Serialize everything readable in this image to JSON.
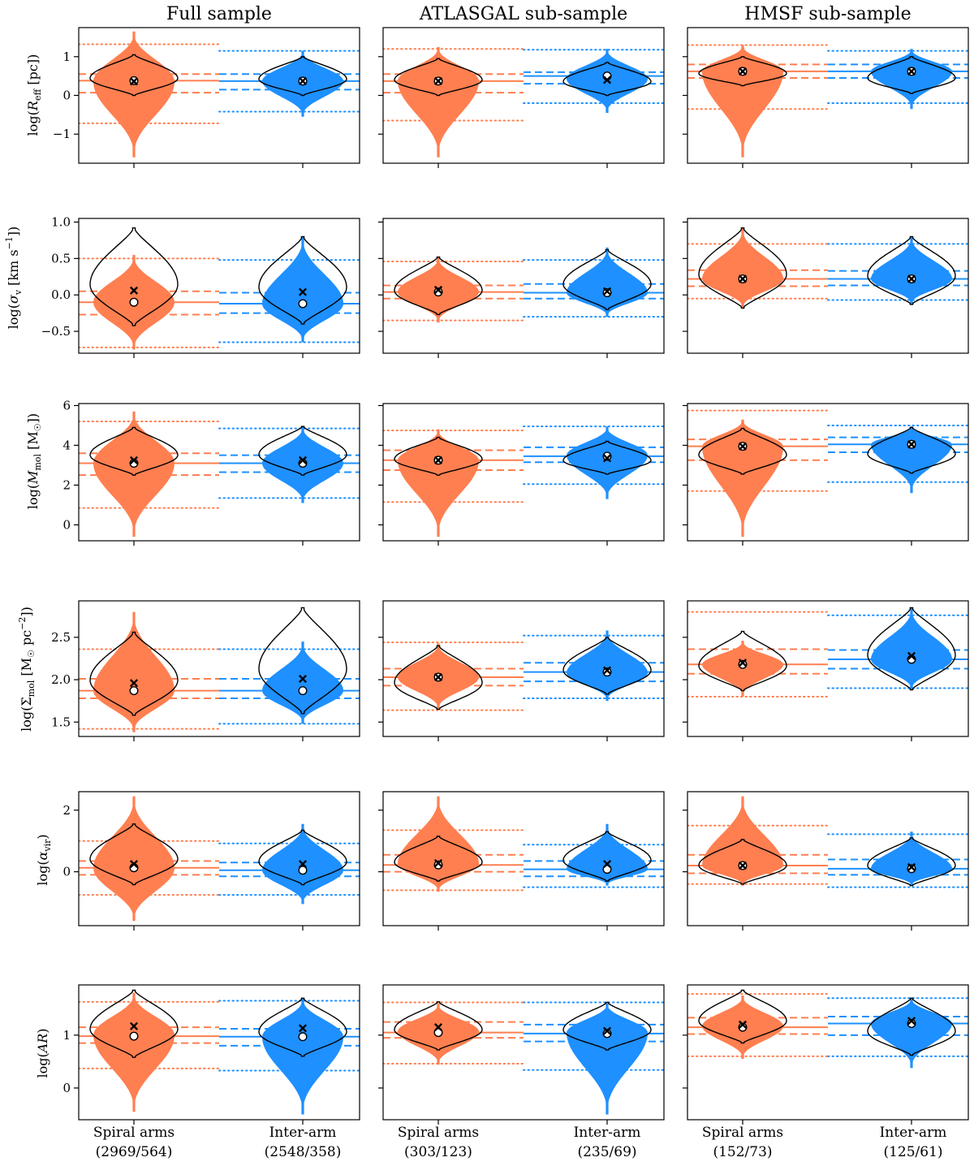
{
  "colors": {
    "spiral": "#ff7f50",
    "interarm": "#1e90ff"
  },
  "column_titles": [
    "Full sample",
    "ATLASGAL sub-sample",
    "HMSF sub-sample"
  ],
  "xlabels": {
    "full": {
      "spiral_name": "Spiral arms",
      "spiral_counts": "(2969/564)",
      "inter_name": "Inter-arm",
      "inter_counts": "(2548/358)"
    },
    "atlasgal": {
      "spiral_name": "Spiral arms",
      "spiral_counts": "(303/123)",
      "inter_name": "Inter-arm",
      "inter_counts": "(235/69)"
    },
    "hmsf": {
      "spiral_name": "Spiral arms",
      "spiral_counts": "(152/73)",
      "inter_name": "Inter-arm",
      "inter_counts": "(125/61)"
    }
  },
  "chart_data": [
    {
      "type": "violin",
      "quantity": "R_eff",
      "ylabel": "log(R_eff [pc])",
      "ylim": [
        -1.75,
        1.75
      ],
      "yticks": [
        1,
        0,
        -1
      ],
      "panels": [
        {
          "column": "Full sample",
          "spiral": {
            "all": {
              "min": -1.6,
              "max": 1.65,
              "median": 0.35
            },
            "weighted": {
              "min": 0.0,
              "max": 1.05
            },
            "mean": 0.38,
            "w_mean": 0.36,
            "p25": 0.07,
            "p75": 0.55,
            "p5": -0.72,
            "p95": 1.32
          },
          "inter": {
            "all": {
              "min": -0.55,
              "max": 1.15,
              "median": 0.37
            },
            "weighted": {
              "min": 0.0,
              "max": 1.0
            },
            "mean": 0.37,
            "w_mean": 0.37,
            "p25": 0.15,
            "p75": 0.55,
            "p5": -0.42,
            "p95": 1.15
          }
        },
        {
          "column": "ATLASGAL sub-sample",
          "spiral": {
            "all": {
              "min": -1.6,
              "max": 1.25,
              "median": 0.38
            },
            "weighted": {
              "min": 0.0,
              "max": 0.95
            },
            "mean": 0.37,
            "w_mean": 0.37,
            "p25": 0.07,
            "p75": 0.55,
            "p5": -0.65,
            "p95": 1.2
          },
          "inter": {
            "all": {
              "min": -0.45,
              "max": 1.2,
              "median": 0.43
            },
            "weighted": {
              "min": 0.0,
              "max": 0.85
            },
            "mean": 0.5,
            "w_mean": 0.4,
            "p25": 0.3,
            "p75": 0.6,
            "p5": -0.2,
            "p95": 1.18
          }
        },
        {
          "column": "HMSF sub-sample",
          "spiral": {
            "all": {
              "min": -1.6,
              "max": 1.3,
              "median": 0.62
            },
            "weighted": {
              "min": 0.25,
              "max": 1.0
            },
            "mean": 0.62,
            "w_mean": 0.62,
            "p25": 0.45,
            "p75": 0.8,
            "p5": -0.35,
            "p95": 1.3
          },
          "inter": {
            "all": {
              "min": -0.35,
              "max": 1.2,
              "median": 0.62
            },
            "weighted": {
              "min": 0.05,
              "max": 1.0
            },
            "mean": 0.62,
            "w_mean": 0.62,
            "p25": 0.45,
            "p75": 0.8,
            "p5": -0.2,
            "p95": 1.15
          }
        }
      ]
    },
    {
      "type": "violin",
      "quantity": "sigma_v",
      "ylabel": "log(σ_v [km s⁻¹])",
      "ylim": [
        -0.8,
        1.05
      ],
      "yticks": [
        1.0,
        0.5,
        0.0,
        -0.5
      ],
      "panels": [
        {
          "column": "Full sample",
          "spiral": {
            "all": {
              "min": -0.75,
              "max": 0.55,
              "median": -0.1
            },
            "weighted": {
              "min": -0.42,
              "max": 0.92
            },
            "mean": -0.1,
            "w_mean": 0.06,
            "p25": -0.27,
            "p75": 0.05,
            "p5": -0.72,
            "p95": 0.5
          },
          "inter": {
            "all": {
              "min": -0.65,
              "max": 0.8,
              "median": -0.12
            },
            "weighted": {
              "min": -0.4,
              "max": 0.8
            },
            "mean": -0.12,
            "w_mean": 0.04,
            "p25": -0.25,
            "p75": 0.03,
            "p5": -0.65,
            "p95": 0.48
          }
        },
        {
          "column": "ATLASGAL sub-sample",
          "spiral": {
            "all": {
              "min": -0.38,
              "max": 0.52,
              "median": 0.04
            },
            "weighted": {
              "min": -0.27,
              "max": 0.52
            },
            "mean": 0.04,
            "w_mean": 0.07,
            "p25": -0.05,
            "p75": 0.13,
            "p5": -0.35,
            "p95": 0.46
          },
          "inter": {
            "all": {
              "min": -0.3,
              "max": 0.65,
              "median": 0.03
            },
            "weighted": {
              "min": -0.2,
              "max": 0.62
            },
            "mean": 0.03,
            "w_mean": 0.05,
            "p25": -0.05,
            "p75": 0.15,
            "p5": -0.3,
            "p95": 0.48
          }
        },
        {
          "column": "HMSF sub-sample",
          "spiral": {
            "all": {
              "min": -0.18,
              "max": 0.92,
              "median": 0.22
            },
            "weighted": {
              "min": -0.18,
              "max": 0.92
            },
            "mean": 0.22,
            "w_mean": 0.22,
            "p25": 0.12,
            "p75": 0.34,
            "p5": -0.05,
            "p95": 0.7
          },
          "inter": {
            "all": {
              "min": -0.13,
              "max": 0.8,
              "median": 0.22
            },
            "weighted": {
              "min": -0.13,
              "max": 0.8
            },
            "mean": 0.22,
            "w_mean": 0.22,
            "p25": 0.13,
            "p75": 0.33,
            "p5": -0.07,
            "p95": 0.7
          }
        }
      ]
    },
    {
      "type": "violin",
      "quantity": "M_mol",
      "ylabel": "log(M_mol [M☉])",
      "ylim": [
        -0.8,
        6.1
      ],
      "yticks": [
        6,
        4,
        2,
        0
      ],
      "panels": [
        {
          "column": "Full sample",
          "spiral": {
            "all": {
              "min": -0.6,
              "max": 5.7,
              "median": 3.1
            },
            "weighted": {
              "min": 2.5,
              "max": 4.9
            },
            "mean": 3.1,
            "w_mean": 3.25,
            "p25": 2.5,
            "p75": 3.6,
            "p5": 0.85,
            "p95": 5.2
          },
          "inter": {
            "all": {
              "min": 1.1,
              "max": 4.95,
              "median": 3.1
            },
            "weighted": {
              "min": 2.5,
              "max": 4.95
            },
            "mean": 3.1,
            "w_mean": 3.25,
            "p25": 2.65,
            "p75": 3.5,
            "p5": 1.35,
            "p95": 4.85
          }
        },
        {
          "column": "ATLASGAL sub-sample",
          "spiral": {
            "all": {
              "min": -0.6,
              "max": 4.8,
              "median": 3.25
            },
            "weighted": {
              "min": 2.5,
              "max": 4.4
            },
            "mean": 3.25,
            "w_mean": 3.25,
            "p25": 2.75,
            "p75": 3.75,
            "p5": 1.15,
            "p95": 4.75
          },
          "inter": {
            "all": {
              "min": 1.3,
              "max": 4.95,
              "median": 3.5
            },
            "weighted": {
              "min": 2.55,
              "max": 4.2
            },
            "mean": 3.45,
            "w_mean": 3.35,
            "p25": 3.15,
            "p75": 3.9,
            "p5": 2.05,
            "p95": 4.95
          }
        },
        {
          "column": "HMSF sub-sample",
          "spiral": {
            "all": {
              "min": -0.6,
              "max": 5.3,
              "median": 3.95
            },
            "weighted": {
              "min": 2.55,
              "max": 4.85
            },
            "mean": 3.95,
            "w_mean": 3.95,
            "p25": 3.25,
            "p75": 4.3,
            "p5": 1.7,
            "p95": 5.75
          },
          "inter": {
            "all": {
              "min": 1.6,
              "max": 4.95,
              "median": 4.05
            },
            "weighted": {
              "min": 2.6,
              "max": 4.9
            },
            "mean": 4.05,
            "w_mean": 4.05,
            "p25": 3.65,
            "p75": 4.4,
            "p5": 2.15,
            "p95": 5.0
          }
        }
      ]
    },
    {
      "type": "violin",
      "quantity": "Sigma_mol",
      "ylabel": "log(Σ_mol [M☉ pc⁻²])",
      "ylim": [
        1.33,
        2.93
      ],
      "yticks": [
        2.5,
        2.0,
        1.5
      ],
      "panels": [
        {
          "column": "Full sample",
          "spiral": {
            "all": {
              "min": 1.38,
              "max": 2.8,
              "median": 1.87
            },
            "weighted": {
              "min": 1.58,
              "max": 2.56
            },
            "mean": 1.87,
            "w_mean": 1.96,
            "p25": 1.78,
            "p75": 2.01,
            "p5": 1.42,
            "p95": 2.36
          },
          "inter": {
            "all": {
              "min": 1.48,
              "max": 2.45,
              "median": 1.87
            },
            "weighted": {
              "min": 1.6,
              "max": 2.85
            },
            "mean": 1.87,
            "w_mean": 2.01,
            "p25": 1.78,
            "p75": 2.01,
            "p5": 1.48,
            "p95": 2.36
          }
        },
        {
          "column": "ATLASGAL sub-sample",
          "spiral": {
            "all": {
              "min": 1.65,
              "max": 2.43,
              "median": 2.03
            },
            "weighted": {
              "min": 1.65,
              "max": 2.4
            },
            "mean": 2.03,
            "w_mean": 2.03,
            "p25": 1.93,
            "p75": 2.13,
            "p5": 1.64,
            "p95": 2.44
          },
          "inter": {
            "all": {
              "min": 1.75,
              "max": 2.58,
              "median": 2.08
            },
            "weighted": {
              "min": 1.83,
              "max": 2.5
            },
            "mean": 2.09,
            "w_mean": 2.11,
            "p25": 1.98,
            "p75": 2.2,
            "p5": 1.78,
            "p95": 2.52
          }
        },
        {
          "column": "HMSF sub-sample",
          "spiral": {
            "all": {
              "min": 1.8,
              "max": 2.46,
              "median": 2.18
            },
            "weighted": {
              "min": 1.87,
              "max": 2.57
            },
            "mean": 2.18,
            "w_mean": 2.2,
            "p25": 2.07,
            "p75": 2.36,
            "p5": 1.8,
            "p95": 2.8
          },
          "inter": {
            "all": {
              "min": 1.88,
              "max": 2.85,
              "median": 2.24
            },
            "weighted": {
              "min": 1.88,
              "max": 2.85
            },
            "mean": 2.24,
            "w_mean": 2.28,
            "p25": 2.13,
            "p75": 2.35,
            "p5": 1.9,
            "p95": 2.76
          }
        }
      ]
    },
    {
      "type": "violin",
      "quantity": "alpha_vir",
      "ylabel": "log(α_vir)",
      "ylim": [
        -1.75,
        2.6
      ],
      "yticks": [
        2,
        0
      ],
      "panels": [
        {
          "column": "Full sample",
          "spiral": {
            "all": {
              "min": -1.6,
              "max": 2.45,
              "median": 0.12
            },
            "weighted": {
              "min": -0.42,
              "max": 1.55
            },
            "mean": 0.13,
            "w_mean": 0.25,
            "p25": -0.1,
            "p75": 0.35,
            "p5": -0.75,
            "p95": 1.0
          },
          "inter": {
            "all": {
              "min": -1.05,
              "max": 1.55,
              "median": 0.05
            },
            "weighted": {
              "min": -0.42,
              "max": 1.35
            },
            "mean": 0.05,
            "w_mean": 0.25,
            "p25": -0.15,
            "p75": 0.3,
            "p5": -0.75,
            "p95": 0.92
          }
        },
        {
          "column": "ATLASGAL sub-sample",
          "spiral": {
            "all": {
              "min": -0.65,
              "max": 2.45,
              "median": 0.25
            },
            "weighted": {
              "min": -0.3,
              "max": 1.15
            },
            "mean": 0.22,
            "w_mean": 0.28,
            "p25": 0.0,
            "p75": 0.55,
            "p5": -0.6,
            "p95": 1.35
          },
          "inter": {
            "all": {
              "min": -0.45,
              "max": 1.55,
              "median": 0.08
            },
            "weighted": {
              "min": -0.3,
              "max": 1.3
            },
            "mean": 0.08,
            "w_mean": 0.25,
            "p25": -0.15,
            "p75": 0.35,
            "p5": -0.5,
            "p95": 0.88
          }
        },
        {
          "column": "HMSF sub-sample",
          "spiral": {
            "all": {
              "min": -0.45,
              "max": 2.45,
              "median": 0.2
            },
            "weighted": {
              "min": -0.4,
              "max": 1.05
            },
            "mean": 0.2,
            "w_mean": 0.2,
            "p25": -0.05,
            "p75": 0.55,
            "p5": -0.4,
            "p95": 1.5
          },
          "inter": {
            "all": {
              "min": -0.45,
              "max": 1.3,
              "median": 0.1
            },
            "weighted": {
              "min": -0.45,
              "max": 1.1
            },
            "mean": 0.1,
            "w_mean": 0.15,
            "p25": -0.1,
            "p75": 0.4,
            "p5": -0.5,
            "p95": 1.22
          }
        }
      ]
    },
    {
      "type": "violin",
      "quantity": "AR",
      "ylabel": "log(AR)",
      "ylim": [
        -0.6,
        1.95
      ],
      "yticks": [
        1,
        0
      ],
      "panels": [
        {
          "column": "Full sample",
          "spiral": {
            "all": {
              "min": -0.45,
              "max": 1.8,
              "median": 1.0
            },
            "weighted": {
              "min": 0.58,
              "max": 1.85
            },
            "mean": 0.98,
            "w_mean": 1.17,
            "p25": 0.85,
            "p75": 1.15,
            "p5": 0.37,
            "p95": 1.63
          },
          "inter": {
            "all": {
              "min": -0.5,
              "max": 1.7,
              "median": 0.97
            },
            "weighted": {
              "min": 0.6,
              "max": 1.7
            },
            "mean": 0.97,
            "w_mean": 1.13,
            "p25": 0.8,
            "p75": 1.12,
            "p5": 0.33,
            "p95": 1.65
          }
        },
        {
          "column": "ATLASGAL sub-sample",
          "spiral": {
            "all": {
              "min": 0.44,
              "max": 1.6,
              "median": 1.07
            },
            "weighted": {
              "min": 0.72,
              "max": 1.63
            },
            "mean": 1.05,
            "w_mean": 1.15,
            "p25": 0.95,
            "p75": 1.25,
            "p5": 0.46,
            "p95": 1.62
          },
          "inter": {
            "all": {
              "min": -0.5,
              "max": 1.6,
              "median": 1.05
            },
            "weighted": {
              "min": 0.72,
              "max": 1.62
            },
            "mean": 1.03,
            "w_mean": 1.08,
            "p25": 0.88,
            "p75": 1.2,
            "p5": 0.34,
            "p95": 1.62
          }
        },
        {
          "column": "HMSF sub-sample",
          "spiral": {
            "all": {
              "min": 0.55,
              "max": 1.75,
              "median": 1.17
            },
            "weighted": {
              "min": 0.85,
              "max": 1.85
            },
            "mean": 1.15,
            "w_mean": 1.2,
            "p25": 1.02,
            "p75": 1.33,
            "p5": 0.6,
            "p95": 1.78
          },
          "inter": {
            "all": {
              "min": 0.38,
              "max": 1.7,
              "median": 1.22
            },
            "weighted": {
              "min": 0.62,
              "max": 1.7
            },
            "mean": 1.22,
            "w_mean": 1.27,
            "p25": 1.0,
            "p75": 1.35,
            "p5": 0.6,
            "p95": 1.7
          }
        }
      ]
    }
  ]
}
